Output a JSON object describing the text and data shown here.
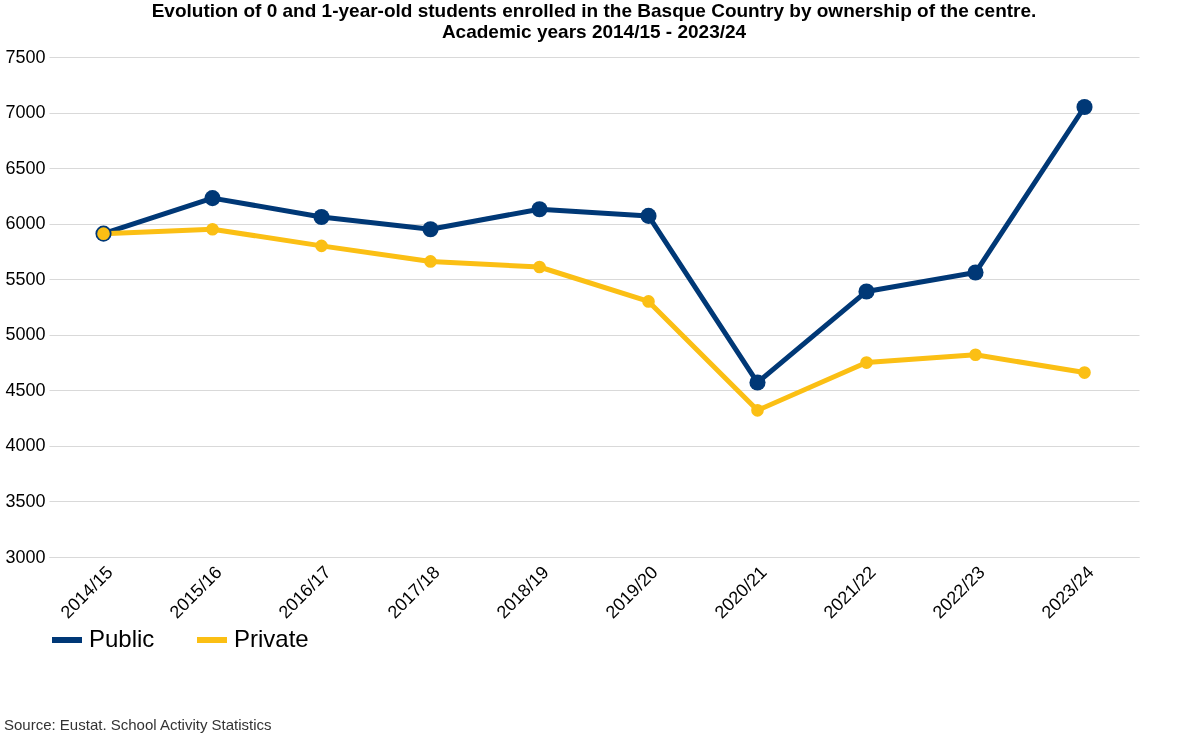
{
  "chart_data": {
    "type": "line",
    "title": "Evolution of 0 and 1-year-old students enrolled in the Basque Country by ownership of the centre.",
    "subtitle": "Academic years 2014/15 - 2023/24",
    "categories": [
      "2014/15",
      "2015/16",
      "2016/17",
      "2017/18",
      "2018/19",
      "2019/20",
      "2020/21",
      "2021/22",
      "2022/23",
      "2023/24"
    ],
    "series": [
      {
        "name": "Public",
        "color": "#003876",
        "values": [
          5910,
          6230,
          6060,
          5950,
          6130,
          6070,
          4570,
          5390,
          5560,
          7050
        ]
      },
      {
        "name": "Private",
        "color": "#fbbf14",
        "values": [
          5910,
          5950,
          5800,
          5660,
          5610,
          5300,
          4320,
          4750,
          4820,
          4660
        ]
      }
    ],
    "ylim": [
      3000,
      7500
    ],
    "yticks": [
      3000,
      3500,
      4000,
      4500,
      5000,
      5500,
      6000,
      6500,
      7000,
      7500
    ],
    "grid": "y",
    "legend": "bottom",
    "marker": "circle",
    "line_style": "solid",
    "annotations": [
      "Source: Eustat. School Activity Statistics"
    ]
  }
}
